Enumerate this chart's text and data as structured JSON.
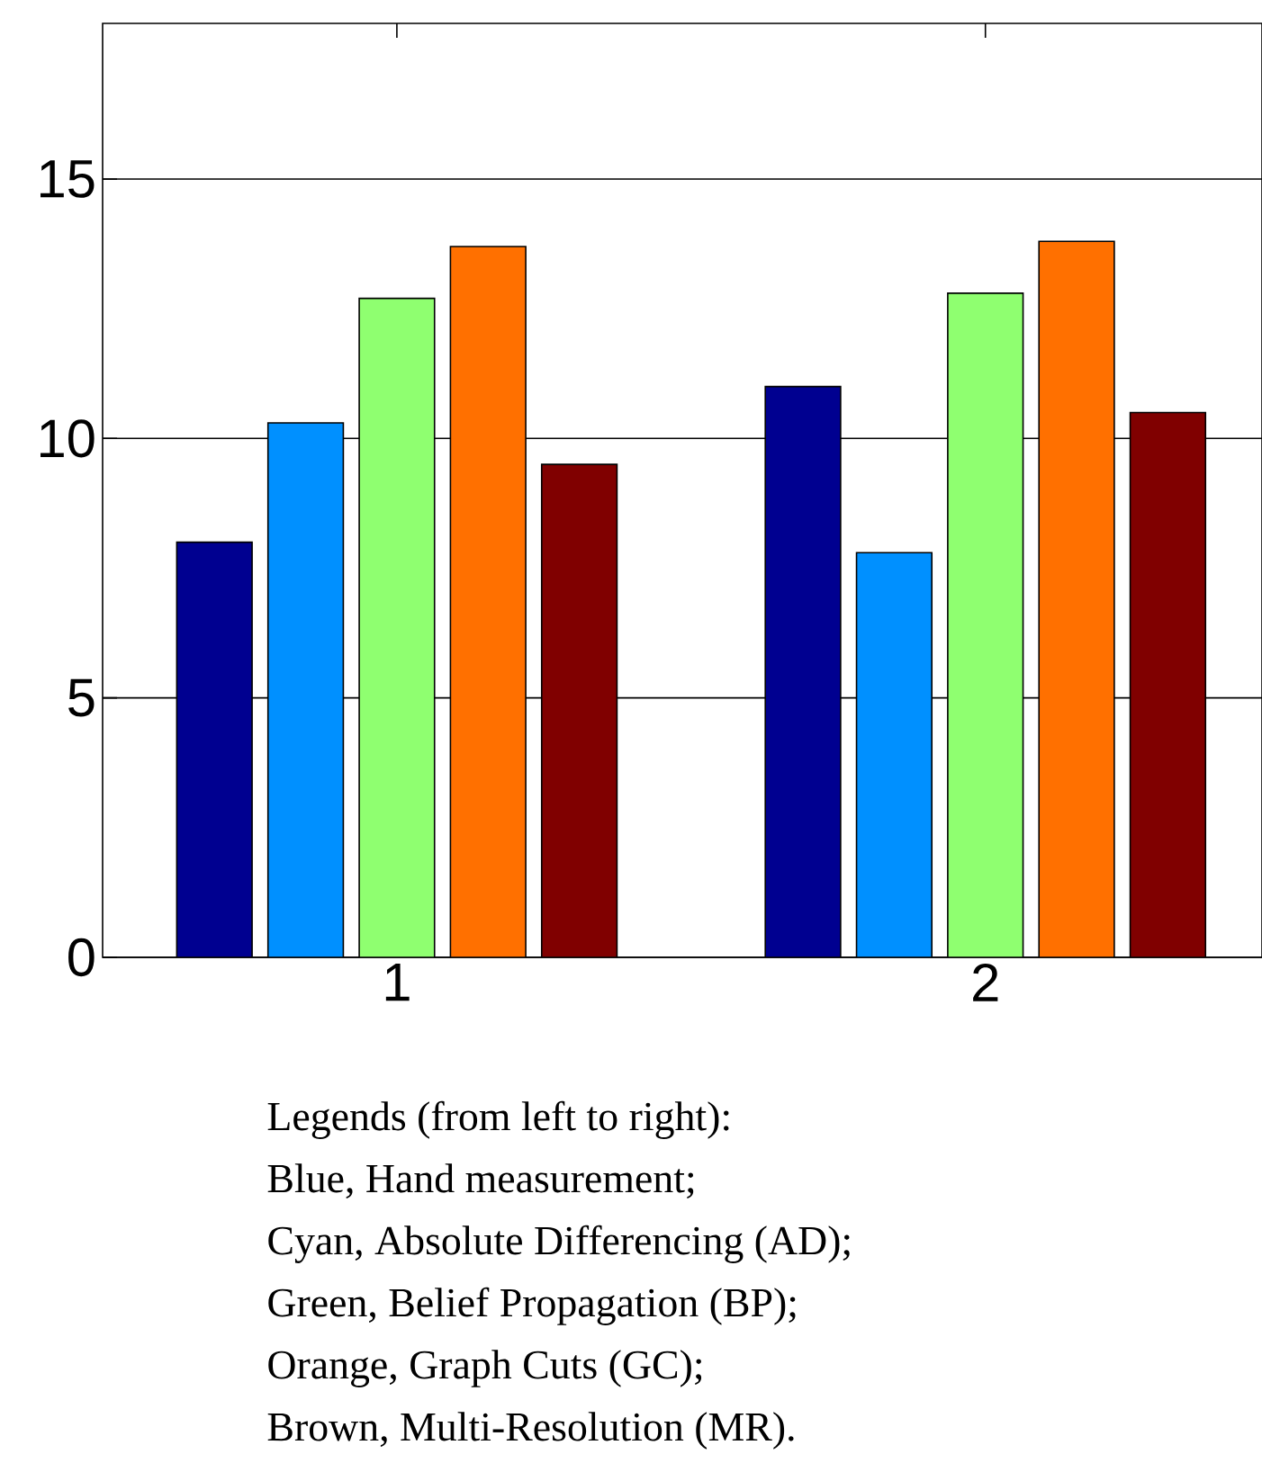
{
  "chart_data": {
    "type": "bar",
    "categories": [
      "1",
      "2"
    ],
    "series": [
      {
        "color": "#000090",
        "values": [
          8.0,
          11.0
        ]
      },
      {
        "color": "#0090ff",
        "values": [
          10.3,
          7.8
        ]
      },
      {
        "color": "#8fff70",
        "values": [
          12.7,
          12.8
        ]
      },
      {
        "color": "#ff7000",
        "values": [
          13.7,
          13.8
        ]
      },
      {
        "color": "#800000",
        "values": [
          9.5,
          10.5
        ]
      }
    ],
    "ylim": [
      0,
      18
    ],
    "yticks": [
      0,
      5,
      10,
      15
    ],
    "grid": "y",
    "annotations": [
      "Legends (from left to right):",
      "Blue, Hand measurement;",
      "Cyan, Absolute Differencing (AD);",
      "Green, Belief Propagation (BP);",
      "Orange, Graph Cuts (GC);",
      "Brown, Multi-Resolution (MR)."
    ]
  }
}
